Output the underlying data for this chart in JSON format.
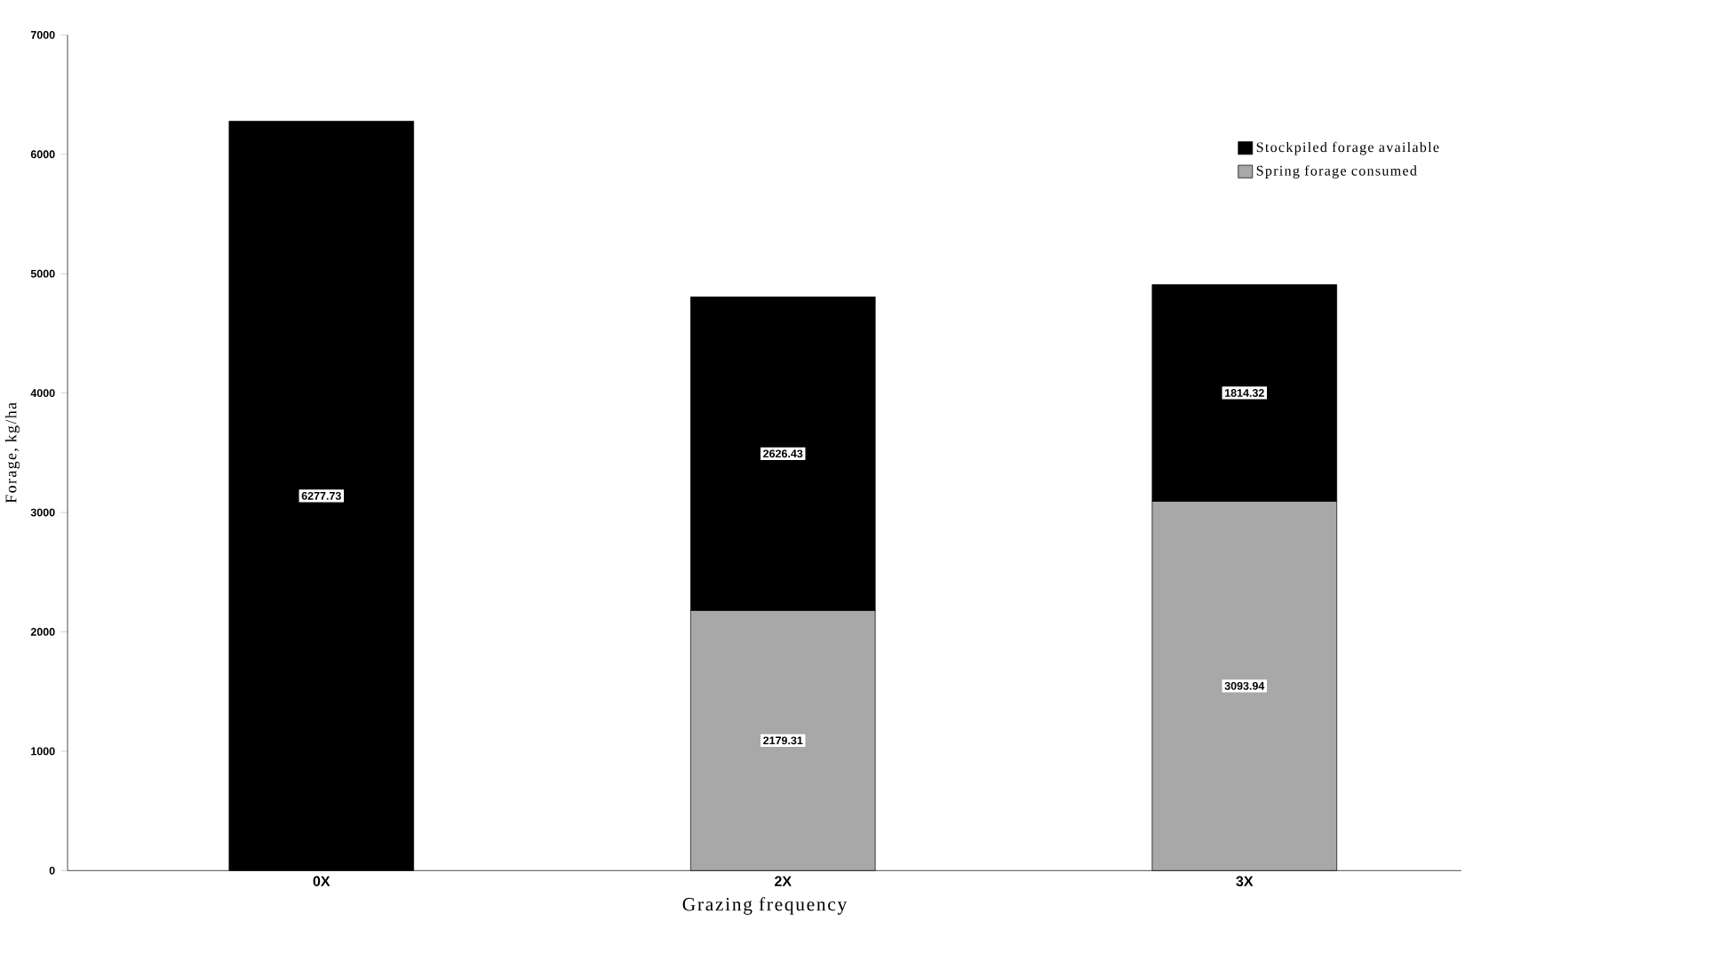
{
  "chart_data": {
    "type": "bar",
    "stacked": true,
    "xlabel": "Grazing frequency",
    "ylabel": "Forage, kg/ha",
    "categories": [
      "0X",
      "2X",
      "3X"
    ],
    "series": [
      {
        "name": "Spring forage consumed",
        "color": "#a8a8a8",
        "values": [
          null,
          2179.31,
          3093.94
        ]
      },
      {
        "name": "Stockpiled forage available",
        "color": "#000000",
        "values": [
          6277.73,
          2626.43,
          1814.32
        ]
      }
    ],
    "ylim": [
      0,
      7000
    ],
    "yticks": [
      0,
      1000,
      2000,
      3000,
      4000,
      5000,
      6000,
      7000
    ],
    "data_labels": true,
    "legend": "top right",
    "grid": false
  }
}
